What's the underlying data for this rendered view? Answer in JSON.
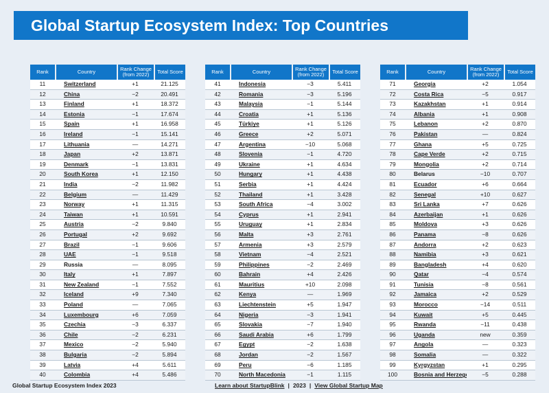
{
  "title": "Global Startup Ecosystem Index: Top Countries",
  "headers": {
    "rank": "Rank",
    "country": "Country",
    "change_line1": "Rank Change",
    "change_line2": "(from 2022)",
    "score": "Total Score"
  },
  "columns": [
    {
      "rows": [
        {
          "rank": "11",
          "country": "Switzerland",
          "link": true,
          "change": "+1",
          "score": "21.125"
        },
        {
          "rank": "12",
          "country": "China",
          "link": true,
          "change": "−2",
          "score": "20.491"
        },
        {
          "rank": "13",
          "country": "Finland",
          "link": true,
          "change": "+1",
          "score": "18.372"
        },
        {
          "rank": "14",
          "country": "Estonia",
          "link": true,
          "change": "−1",
          "score": "17.674"
        },
        {
          "rank": "15",
          "country": "Spain",
          "link": true,
          "change": "+1",
          "score": "16.958"
        },
        {
          "rank": "16",
          "country": "Ireland",
          "link": true,
          "change": "−1",
          "score": "15.141"
        },
        {
          "rank": "17",
          "country": "Lithuania",
          "link": true,
          "change": "—",
          "score": "14.271"
        },
        {
          "rank": "18",
          "country": "Japan",
          "link": true,
          "change": "+2",
          "score": "13.871"
        },
        {
          "rank": "19",
          "country": "Denmark",
          "link": true,
          "change": "−1",
          "score": "13.831"
        },
        {
          "rank": "20",
          "country": "South Korea",
          "link": true,
          "change": "+1",
          "score": "12.150"
        },
        {
          "rank": "21",
          "country": "India",
          "link": true,
          "change": "−2",
          "score": "11.982"
        },
        {
          "rank": "22",
          "country": "Belgium",
          "link": true,
          "change": "—",
          "score": "11.429"
        },
        {
          "rank": "23",
          "country": "Norway",
          "link": true,
          "change": "+1",
          "score": "11.315"
        },
        {
          "rank": "24",
          "country": "Taiwan",
          "link": true,
          "change": "+1",
          "score": "10.591"
        },
        {
          "rank": "25",
          "country": "Austria",
          "link": true,
          "change": "−2",
          "score": "9.840"
        },
        {
          "rank": "26",
          "country": "Portugal",
          "link": true,
          "change": "+2",
          "score": "9.692"
        },
        {
          "rank": "27",
          "country": "Brazil",
          "link": true,
          "change": "−1",
          "score": "9.606"
        },
        {
          "rank": "28",
          "country": "UAE",
          "link": true,
          "change": "−1",
          "score": "9.518"
        },
        {
          "rank": "29",
          "country": "Russia",
          "link": false,
          "change": "—",
          "score": "8.095"
        },
        {
          "rank": "30",
          "country": "Italy",
          "link": true,
          "change": "+1",
          "score": "7.897"
        },
        {
          "rank": "31",
          "country": "New Zealand",
          "link": true,
          "change": "−1",
          "score": "7.552"
        },
        {
          "rank": "32",
          "country": "Iceland",
          "link": true,
          "change": "+9",
          "score": "7.340"
        },
        {
          "rank": "33",
          "country": "Poland",
          "link": true,
          "change": "—",
          "score": "7.065"
        },
        {
          "rank": "34",
          "country": "Luxembourg",
          "link": true,
          "change": "+6",
          "score": "7.059"
        },
        {
          "rank": "35",
          "country": "Czechia",
          "link": true,
          "change": "−3",
          "score": "6.337"
        },
        {
          "rank": "36",
          "country": "Chile",
          "link": true,
          "change": "−2",
          "score": "6.231"
        },
        {
          "rank": "37",
          "country": "Mexico",
          "link": true,
          "change": "−2",
          "score": "5.940"
        },
        {
          "rank": "38",
          "country": "Bulgaria",
          "link": true,
          "change": "−2",
          "score": "5.894"
        },
        {
          "rank": "39",
          "country": "Latvia",
          "link": true,
          "change": "+4",
          "score": "5.611"
        },
        {
          "rank": "40",
          "country": "Colombia",
          "link": true,
          "change": "+4",
          "score": "5.486"
        }
      ]
    },
    {
      "rows": [
        {
          "rank": "41",
          "country": "Indonesia",
          "link": true,
          "change": "−3",
          "score": "5.411"
        },
        {
          "rank": "42",
          "country": "Romania",
          "link": true,
          "change": "−3",
          "score": "5.196"
        },
        {
          "rank": "43",
          "country": "Malaysia",
          "link": true,
          "change": "−1",
          "score": "5.144"
        },
        {
          "rank": "44",
          "country": "Croatia",
          "link": true,
          "change": "+1",
          "score": "5.136"
        },
        {
          "rank": "45",
          "country": "Türkiye",
          "link": true,
          "change": "+1",
          "score": "5.126"
        },
        {
          "rank": "46",
          "country": "Greece",
          "link": true,
          "change": "+2",
          "score": "5.071"
        },
        {
          "rank": "47",
          "country": "Argentina",
          "link": true,
          "change": "−10",
          "score": "5.068"
        },
        {
          "rank": "48",
          "country": "Slovenia",
          "link": true,
          "change": "−1",
          "score": "4.720"
        },
        {
          "rank": "49",
          "country": "Ukraine",
          "link": true,
          "change": "+1",
          "score": "4.634"
        },
        {
          "rank": "50",
          "country": "Hungary",
          "link": true,
          "change": "+1",
          "score": "4.438"
        },
        {
          "rank": "51",
          "country": "Serbia",
          "link": true,
          "change": "+1",
          "score": "4.424"
        },
        {
          "rank": "52",
          "country": "Thailand",
          "link": true,
          "change": "+1",
          "score": "3.428"
        },
        {
          "rank": "53",
          "country": "South Africa",
          "link": true,
          "change": "−4",
          "score": "3.002"
        },
        {
          "rank": "54",
          "country": "Cyprus",
          "link": true,
          "change": "+1",
          "score": "2.941"
        },
        {
          "rank": "55",
          "country": "Uruguay",
          "link": true,
          "change": "+1",
          "score": "2.834"
        },
        {
          "rank": "56",
          "country": "Malta",
          "link": true,
          "change": "+3",
          "score": "2.761"
        },
        {
          "rank": "57",
          "country": "Armenia",
          "link": true,
          "change": "+3",
          "score": "2.579"
        },
        {
          "rank": "58",
          "country": "Vietnam",
          "link": true,
          "change": "−4",
          "score": "2.521"
        },
        {
          "rank": "59",
          "country": "Philippines",
          "link": true,
          "change": "−2",
          "score": "2.469"
        },
        {
          "rank": "60",
          "country": "Bahrain",
          "link": true,
          "change": "+4",
          "score": "2.426"
        },
        {
          "rank": "61",
          "country": "Mauritius",
          "link": true,
          "change": "+10",
          "score": "2.098"
        },
        {
          "rank": "62",
          "country": "Kenya",
          "link": true,
          "change": "—",
          "score": "1.969"
        },
        {
          "rank": "63",
          "country": "Liechtenstein",
          "link": true,
          "change": "+5",
          "score": "1.947"
        },
        {
          "rank": "64",
          "country": "Nigeria",
          "link": true,
          "change": "−3",
          "score": "1.941"
        },
        {
          "rank": "65",
          "country": "Slovakia",
          "link": true,
          "change": "−7",
          "score": "1.940"
        },
        {
          "rank": "66",
          "country": "Saudi Arabia",
          "link": true,
          "change": "+6",
          "score": "1.799"
        },
        {
          "rank": "67",
          "country": "Egypt",
          "link": true,
          "change": "−2",
          "score": "1.638"
        },
        {
          "rank": "68",
          "country": "Jordan",
          "link": true,
          "change": "−2",
          "score": "1.567"
        },
        {
          "rank": "69",
          "country": "Peru",
          "link": true,
          "change": "−6",
          "score": "1.185"
        },
        {
          "rank": "70",
          "country": "North Macedonia",
          "link": true,
          "change": "−1",
          "score": "1.115"
        }
      ]
    },
    {
      "rows": [
        {
          "rank": "71",
          "country": "Georgia",
          "link": true,
          "change": "+2",
          "score": "1.054"
        },
        {
          "rank": "72",
          "country": "Costa Rica",
          "link": true,
          "change": "−5",
          "score": "0.917"
        },
        {
          "rank": "73",
          "country": "Kazakhstan",
          "link": true,
          "change": "+1",
          "score": "0.914"
        },
        {
          "rank": "74",
          "country": "Albania",
          "link": true,
          "change": "+1",
          "score": "0.908"
        },
        {
          "rank": "75",
          "country": "Lebanon",
          "link": true,
          "change": "+2",
          "score": "0.870"
        },
        {
          "rank": "76",
          "country": "Pakistan",
          "link": true,
          "change": "—",
          "score": "0.824"
        },
        {
          "rank": "77",
          "country": "Ghana",
          "link": true,
          "change": "+5",
          "score": "0.725"
        },
        {
          "rank": "78",
          "country": "Cape Verde",
          "link": true,
          "change": "+2",
          "score": "0.715"
        },
        {
          "rank": "79",
          "country": "Mongolia",
          "link": true,
          "change": "+2",
          "score": "0.714"
        },
        {
          "rank": "80",
          "country": "Belarus",
          "link": false,
          "change": "−10",
          "score": "0.707"
        },
        {
          "rank": "81",
          "country": "Ecuador",
          "link": true,
          "change": "+6",
          "score": "0.664"
        },
        {
          "rank": "82",
          "country": "Senegal",
          "link": true,
          "change": "+10",
          "score": "0.627"
        },
        {
          "rank": "83",
          "country": "Sri Lanka",
          "link": true,
          "change": "+7",
          "score": "0.626"
        },
        {
          "rank": "84",
          "country": "Azerbaijan",
          "link": true,
          "change": "+1",
          "score": "0.626"
        },
        {
          "rank": "85",
          "country": "Moldova",
          "link": true,
          "change": "+3",
          "score": "0.626"
        },
        {
          "rank": "86",
          "country": "Panama",
          "link": true,
          "change": "−8",
          "score": "0.626"
        },
        {
          "rank": "87",
          "country": "Andorra",
          "link": true,
          "change": "+2",
          "score": "0.623"
        },
        {
          "rank": "88",
          "country": "Namibia",
          "link": true,
          "change": "+3",
          "score": "0.621"
        },
        {
          "rank": "89",
          "country": "Bangladesh",
          "link": true,
          "change": "+4",
          "score": "0.620"
        },
        {
          "rank": "90",
          "country": "Qatar",
          "link": true,
          "change": "−4",
          "score": "0.574"
        },
        {
          "rank": "91",
          "country": "Tunisia",
          "link": true,
          "change": "−8",
          "score": "0.561"
        },
        {
          "rank": "92",
          "country": "Jamaica",
          "link": true,
          "change": "+2",
          "score": "0.529"
        },
        {
          "rank": "93",
          "country": "Morocco",
          "link": true,
          "change": "−14",
          "score": "0.511"
        },
        {
          "rank": "94",
          "country": "Kuwait",
          "link": true,
          "change": "+5",
          "score": "0.445"
        },
        {
          "rank": "95",
          "country": "Rwanda",
          "link": true,
          "change": "−11",
          "score": "0.438"
        },
        {
          "rank": "96",
          "country": "Uganda",
          "link": true,
          "change": "new",
          "score": "0.359"
        },
        {
          "rank": "97",
          "country": "Angola",
          "link": true,
          "change": "—",
          "score": "0.323"
        },
        {
          "rank": "98",
          "country": "Somalia",
          "link": true,
          "change": "—",
          "score": "0.322"
        },
        {
          "rank": "99",
          "country": "Kyrgyzstan",
          "link": true,
          "change": "+1",
          "score": "0.295"
        },
        {
          "rank": "100",
          "country": "Bosnia and Herzegovina",
          "link": true,
          "change": "−5",
          "score": "0.288"
        }
      ]
    }
  ],
  "footer": {
    "left": "Global Startup Ecosystem Index 2023",
    "learn_link": "Learn about StartupBlink",
    "sep1": "|",
    "year": "2023",
    "sep2": "|",
    "map_link": "View Global Startup Map"
  },
  "colors": {
    "accent": "#1176c9",
    "background": "#e8eef5"
  }
}
